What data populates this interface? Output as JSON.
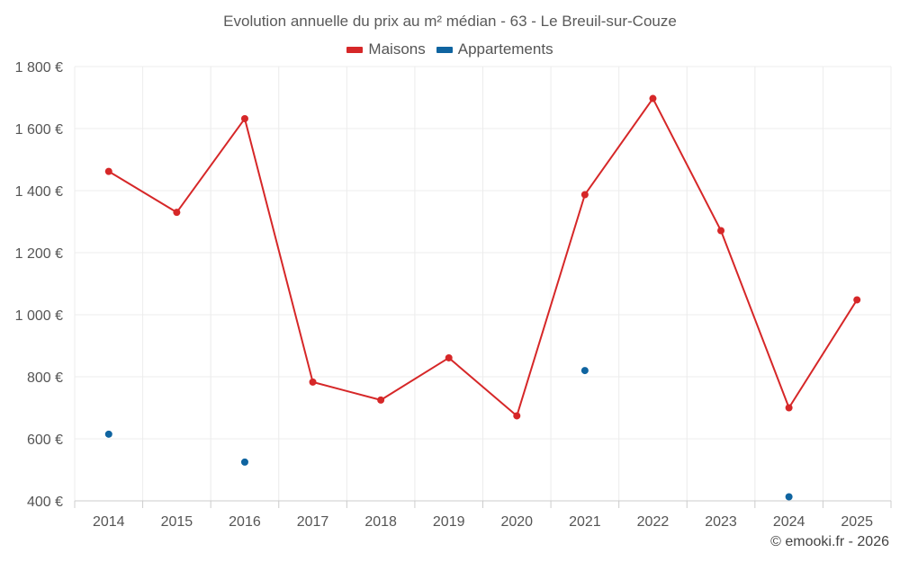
{
  "chart_data": {
    "type": "line",
    "title": "Evolution annuelle du prix au m² médian - 63 - Le Breuil-sur-Couze",
    "categories": [
      "2014",
      "2015",
      "2016",
      "2017",
      "2018",
      "2019",
      "2020",
      "2021",
      "2022",
      "2023",
      "2024",
      "2025"
    ],
    "ylim": [
      400,
      1800
    ],
    "yticks": [
      400,
      600,
      800,
      1000,
      1200,
      1400,
      1600,
      1800
    ],
    "ytick_labels": [
      "400 €",
      "600 €",
      "800 €",
      "1 000 €",
      "1 200 €",
      "1 400 €",
      "1 600 €",
      "1 800 €"
    ],
    "xlabel": "",
    "ylabel": "",
    "grid": true,
    "legend_position": "top-center",
    "series": [
      {
        "name": "Maisons",
        "color": "#d62728",
        "style": "line",
        "values": [
          1462,
          1330,
          1632,
          783,
          725,
          861,
          674,
          1387,
          1697,
          1271,
          700,
          1048
        ]
      },
      {
        "name": "Appartements",
        "color": "#0f64a0",
        "style": "points",
        "values": [
          615,
          null,
          525,
          null,
          null,
          null,
          null,
          820,
          null,
          null,
          413,
          null
        ]
      }
    ]
  },
  "footer": {
    "credit": "© emooki.fr - 2026"
  }
}
